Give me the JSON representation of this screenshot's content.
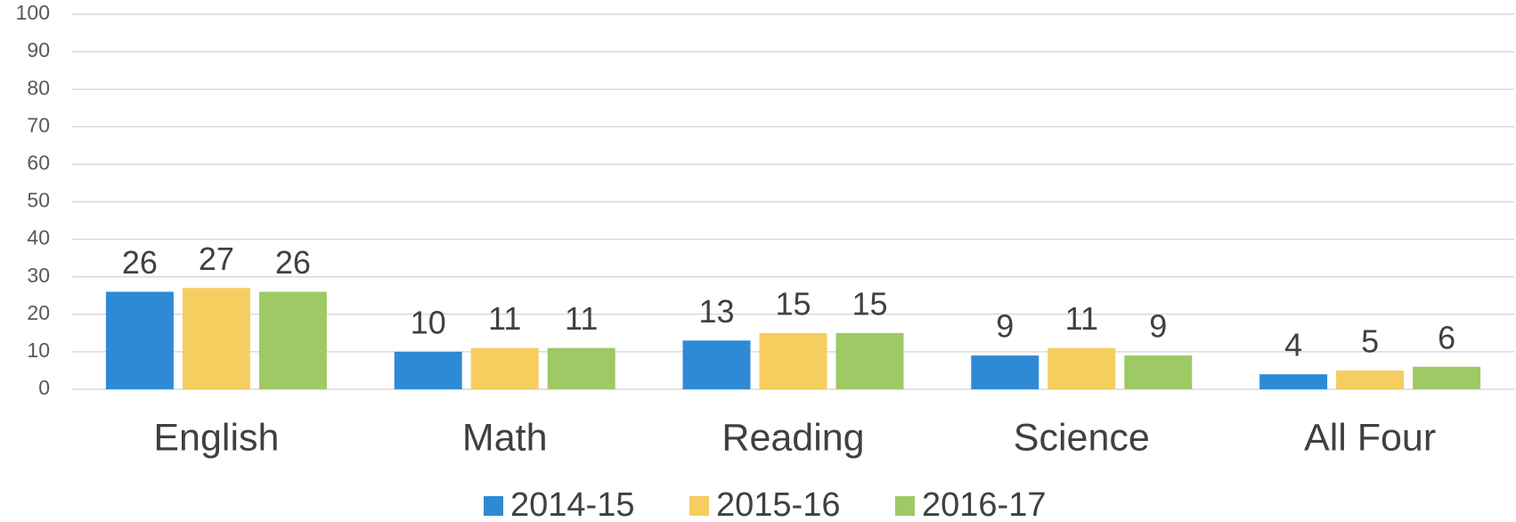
{
  "chart_data": {
    "type": "bar",
    "categories": [
      "English",
      "Math",
      "Reading",
      "Science",
      "All Four"
    ],
    "series": [
      {
        "name": "2014-15",
        "color": "#2f8ad5",
        "values": [
          26,
          10,
          13,
          9,
          4
        ]
      },
      {
        "name": "2015-16",
        "color": "#f6cd5f",
        "values": [
          27,
          11,
          15,
          11,
          5
        ]
      },
      {
        "name": "2016-17",
        "color": "#9ec965",
        "values": [
          26,
          11,
          15,
          9,
          6
        ]
      }
    ],
    "ylim": [
      0,
      100
    ],
    "yticks": [
      0,
      10,
      20,
      30,
      40,
      50,
      60,
      70,
      80,
      90,
      100
    ],
    "grid": true,
    "legend": "bottom"
  }
}
